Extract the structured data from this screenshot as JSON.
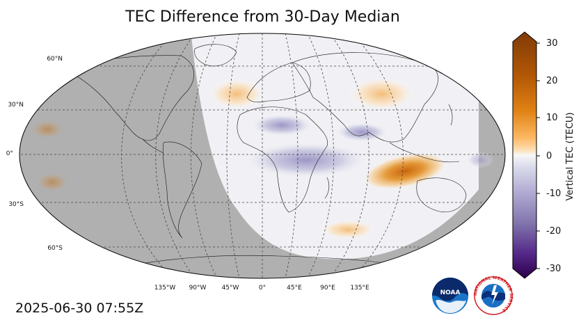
{
  "title": "TEC Difference from 30-Day Median",
  "timestamp": "2025-06-30 07:55Z",
  "colorbar": {
    "label": "Vertical TEC (TECU)",
    "ticks": [
      "30",
      "20",
      "10",
      "0",
      "-10",
      "-20",
      "-30"
    ],
    "range": [
      -30,
      30
    ],
    "colors": {
      "max": "#7f3b08",
      "high": "#e08214",
      "low_pos": "#fde0b6",
      "zero": "#f7f7f7",
      "low_neg": "#d8daeb",
      "mid_neg": "#8073ac",
      "min": "#2d004b"
    }
  },
  "map": {
    "projection": "Robinson",
    "night_shade_color": "#b0b0b0",
    "lat_labels": [
      "60°N",
      "30°N",
      "0°",
      "30°S",
      "60°S"
    ],
    "lon_labels": [
      "135°W",
      "90°W",
      "45°W",
      "0°",
      "45°E",
      "90°E",
      "135°E"
    ],
    "gridlines": true
  },
  "logos": {
    "noaa": "NOAA",
    "nws": "NATIONAL WEATHER SERVICE"
  }
}
